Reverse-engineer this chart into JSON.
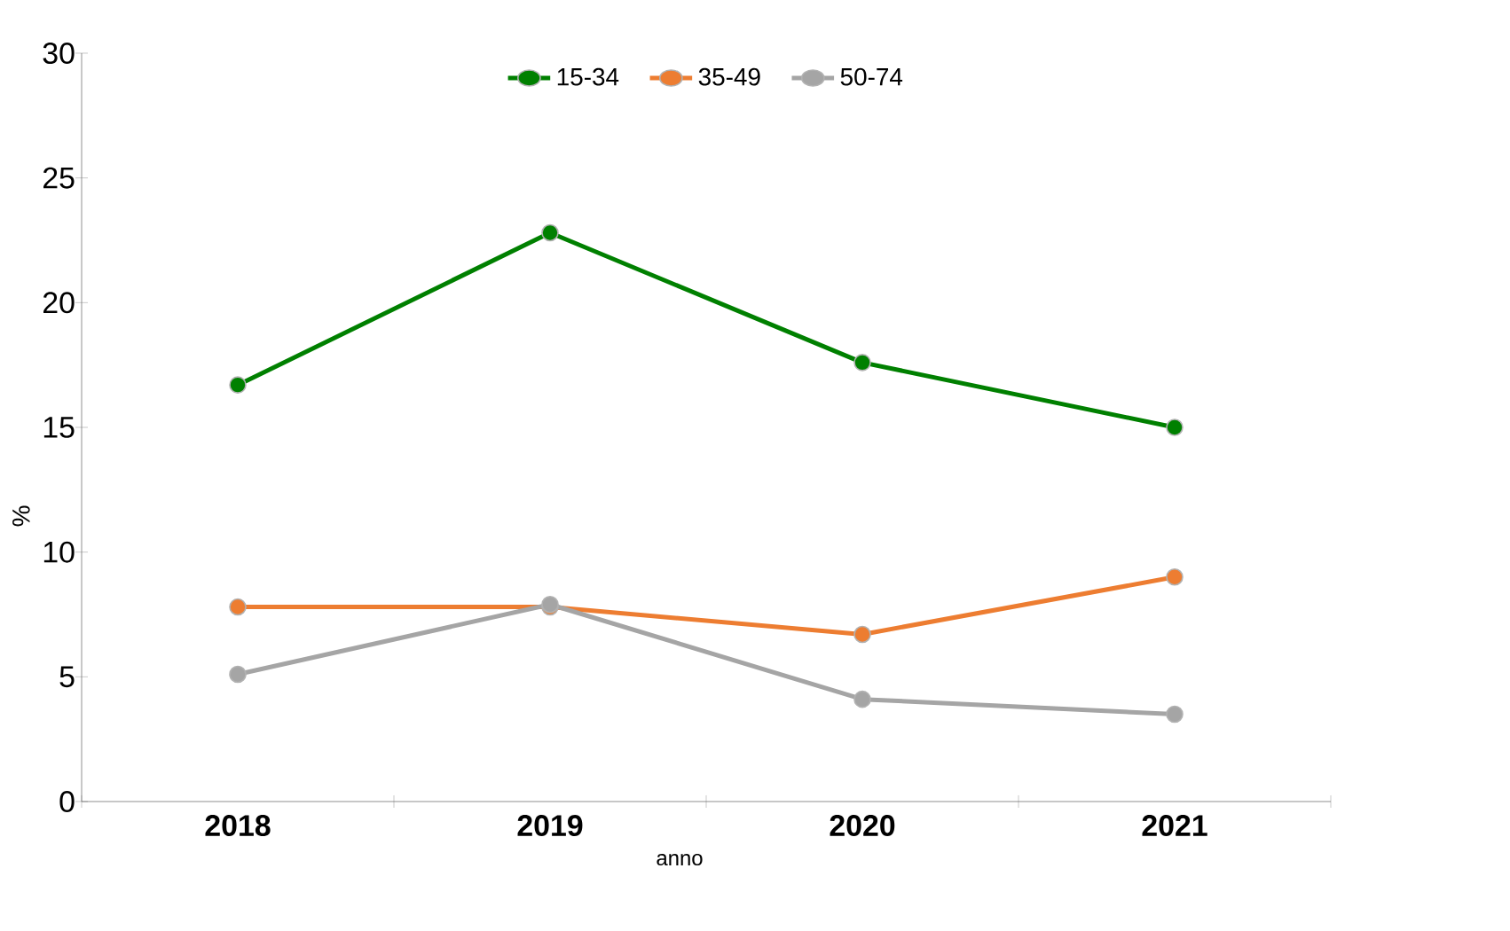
{
  "chart_data": {
    "type": "line",
    "xlabel": "anno",
    "ylabel": "%",
    "categories": [
      "2018",
      "2019",
      "2020",
      "2021"
    ],
    "series": [
      {
        "name": "15-34",
        "color": "#008000",
        "values": [
          16.7,
          22.8,
          17.6,
          15.0
        ]
      },
      {
        "name": "35-49",
        "color": "#ed7d31",
        "values": [
          7.8,
          7.8,
          6.7,
          9.0
        ]
      },
      {
        "name": "50-74",
        "color": "#a5a5a5",
        "values": [
          5.1,
          7.9,
          4.1,
          3.5
        ]
      }
    ],
    "ylim": [
      0,
      30
    ],
    "yticks": [
      0,
      5,
      10,
      15,
      20,
      25,
      30
    ],
    "legend": "top",
    "marker": "circle",
    "line_style": "solid"
  }
}
